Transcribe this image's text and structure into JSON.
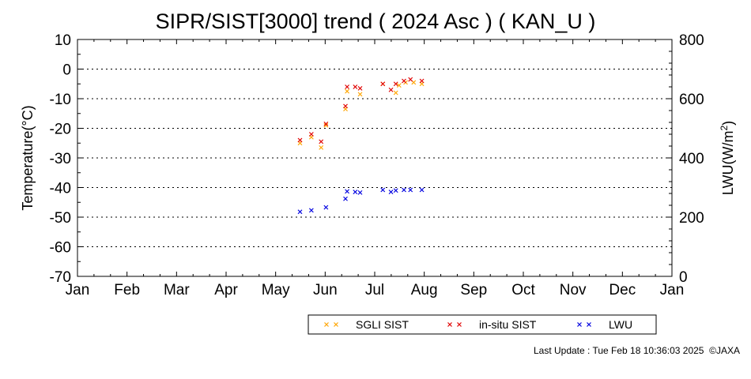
{
  "chart_data": {
    "type": "scatter",
    "title": "SIPR/SIST[3000] trend ( 2024 Asc ) ( KAN_U )",
    "ylabel": "Temperature(°C)",
    "y2label_main": "LWU(W/m",
    "y2label_sup": "2",
    "y2label_end": ")",
    "ylim": [
      -70,
      10
    ],
    "yticks": [
      "10",
      "0",
      "-10",
      "-20",
      "-30",
      "-40",
      "-50",
      "-60",
      "-70"
    ],
    "y2lim": [
      0,
      800
    ],
    "y2ticks": [
      "800",
      "600",
      "400",
      "200",
      "0"
    ],
    "xlim": [
      "2024-01-01",
      "2025-01-01"
    ],
    "xticks": [
      "Jan",
      "Feb",
      "Mar",
      "Apr",
      "May",
      "Jun",
      "Jul",
      "Aug",
      "Sep",
      "Oct",
      "Nov",
      "Dec",
      "Jan"
    ],
    "grid": "horizontal dotted",
    "series": [
      {
        "name": "SGLI SIST",
        "color": "#ffa500",
        "marker": "x",
        "axis": "left",
        "x": [
          "2024-05-17",
          "2024-05-24",
          "2024-05-30",
          "2024-06-02",
          "2024-06-14",
          "2024-06-15",
          "2024-06-23",
          "2024-07-07",
          "2024-07-15",
          "2024-07-17",
          "2024-07-21",
          "2024-07-26",
          "2024-07-31"
        ],
        "y": [
          -25,
          -23,
          -26.5,
          -19,
          -13.5,
          -7.5,
          -8.5,
          -5,
          -8,
          -5.5,
          -4.5,
          -4.5,
          -5
        ]
      },
      {
        "name": "in-situ SIST",
        "color": "#e00000",
        "marker": "x",
        "axis": "left",
        "x": [
          "2024-05-17",
          "2024-05-24",
          "2024-05-30",
          "2024-06-02",
          "2024-06-14",
          "2024-06-15",
          "2024-06-20",
          "2024-06-23",
          "2024-07-07",
          "2024-07-12",
          "2024-07-15",
          "2024-07-20",
          "2024-07-24",
          "2024-07-31"
        ],
        "y": [
          -24,
          -22,
          -24.5,
          -18.5,
          -12.5,
          -6,
          -6,
          -6.5,
          -5,
          -7,
          -5,
          -4,
          -3.5,
          -4
        ]
      },
      {
        "name": "LWU",
        "color": "#0000e0",
        "marker": "x",
        "axis": "right",
        "x": [
          "2024-05-17",
          "2024-05-24",
          "2024-06-02",
          "2024-06-14",
          "2024-06-15",
          "2024-06-20",
          "2024-06-23",
          "2024-07-07",
          "2024-07-12",
          "2024-07-15",
          "2024-07-20",
          "2024-07-24",
          "2024-07-31"
        ],
        "y": [
          218,
          223,
          233,
          262,
          287,
          285,
          283,
          292,
          285,
          290,
          292,
          292,
          292
        ]
      }
    ]
  },
  "footer": {
    "last_update": "Last Update : Tue Feb 18 10:36:03 2025",
    "copyright": "©JAXA"
  }
}
